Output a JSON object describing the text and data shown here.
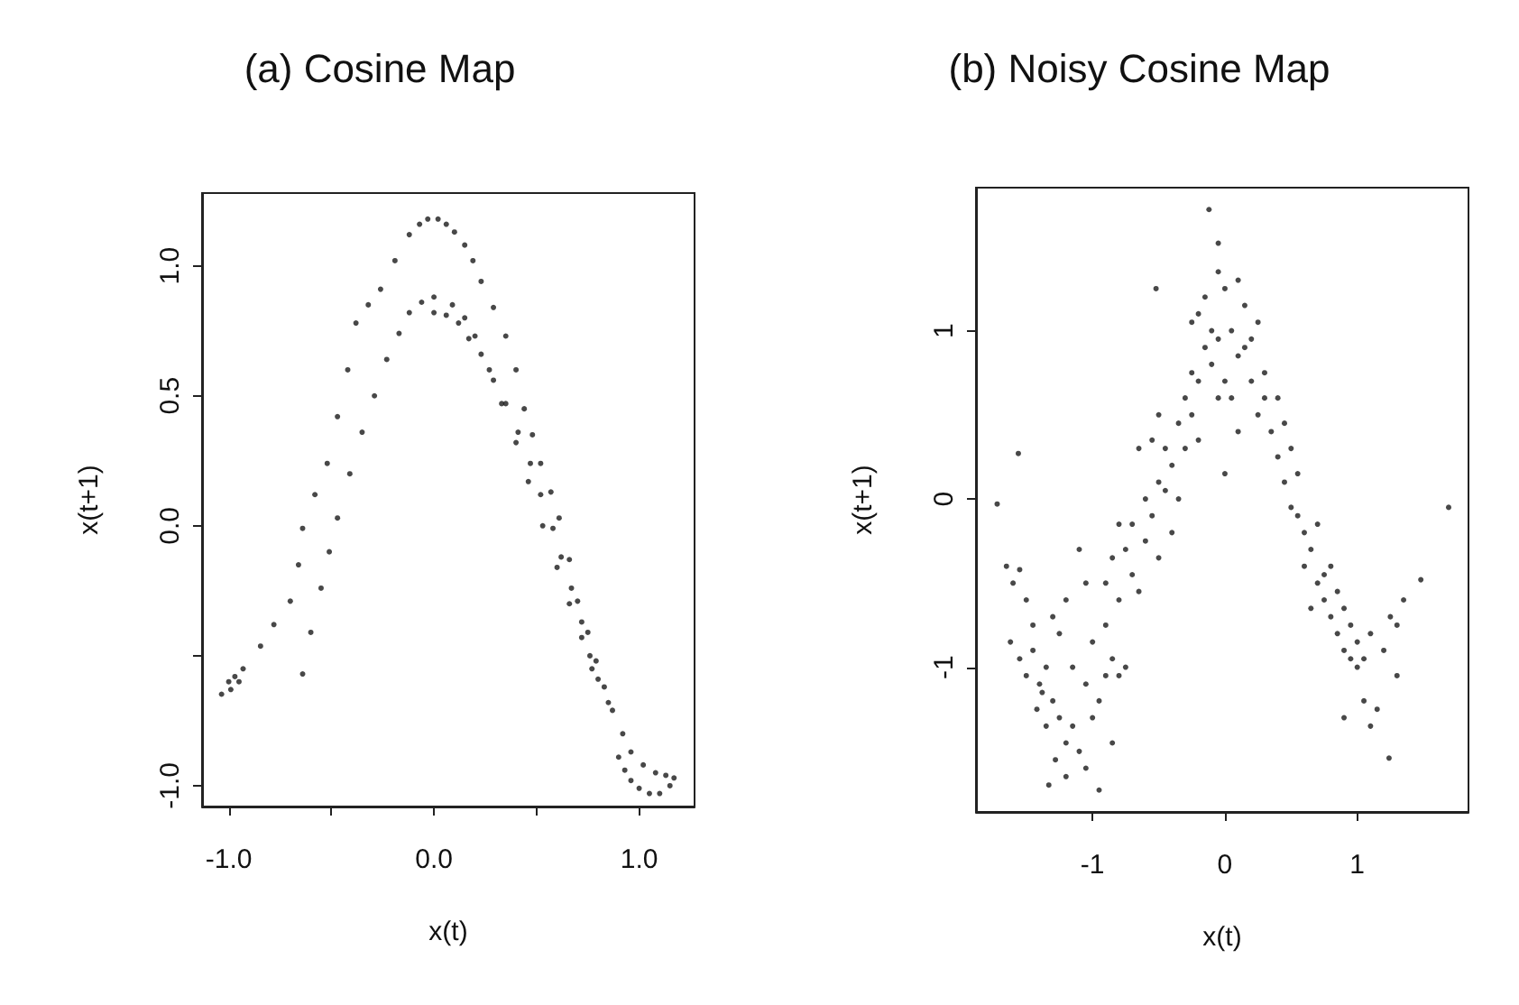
{
  "chart_data": [
    {
      "type": "scatter",
      "title": "(a) Cosine Map",
      "xlabel": "x(t)",
      "ylabel": "x(t+1)",
      "xlim": [
        -1.13,
        1.27
      ],
      "ylim": [
        -1.08,
        1.28
      ],
      "xticks": [
        {
          "value": -1,
          "label": "-1.0"
        },
        {
          "value": -0.5,
          "label": null
        },
        {
          "value": 0,
          "label": "0.0"
        },
        {
          "value": 0.5,
          "label": null
        },
        {
          "value": 1,
          "label": "1.0"
        }
      ],
      "yticks": [
        {
          "value": -1,
          "label": "-1.0"
        },
        {
          "value": -0.5,
          "label": null
        },
        {
          "value": 0,
          "label": "0.0"
        },
        {
          "value": 0.5,
          "label": "0.5"
        },
        {
          "value": 1,
          "label": "1.0"
        }
      ],
      "grid": false,
      "marker": "circle",
      "series": [
        {
          "color": "#1a1a1a",
          "x": [
            -1.035,
            -1.0,
            -0.97,
            -0.95,
            -0.99,
            -0.93,
            -0.845,
            -0.78,
            -0.7,
            -0.66,
            -0.64,
            -0.58,
            -0.52,
            -0.47,
            -0.42,
            -0.38,
            -0.32,
            -0.26,
            -0.19,
            -0.12,
            -0.07,
            -0.03,
            0.02,
            0.06,
            0.1,
            0.15,
            0.19,
            0.23,
            0.29,
            0.35,
            0.4,
            0.44,
            0.48,
            0.52,
            0.57,
            0.61,
            0.66,
            0.7,
            0.75,
            0.79,
            0.83,
            0.87,
            0.92,
            0.96,
            1.02,
            1.08,
            1.13,
            1.17,
            1.15,
            1.1,
            1.05,
            1.0,
            0.96,
            0.93,
            0.9,
            -0.64,
            -0.6,
            -0.55,
            -0.51,
            -0.47,
            -0.41,
            -0.35,
            -0.29,
            -0.23,
            -0.17,
            -0.12,
            -0.06,
            0.0,
            0.0,
            0.06,
            0.12,
            0.17,
            0.23,
            0.29,
            0.35,
            0.41,
            0.47,
            0.52,
            0.58,
            0.62,
            0.67,
            0.72,
            0.76,
            0.8,
            0.85,
            0.09,
            0.15,
            0.2,
            0.27,
            0.33,
            0.4,
            0.46,
            0.53,
            0.6,
            0.66,
            0.72,
            0.77
          ],
          "values": [
            -0.648,
            -0.6,
            -0.58,
            -0.6,
            -0.63,
            -0.55,
            -0.463,
            -0.38,
            -0.29,
            -0.15,
            -0.01,
            0.12,
            0.24,
            0.42,
            0.6,
            0.78,
            0.85,
            0.91,
            1.02,
            1.12,
            1.16,
            1.18,
            1.18,
            1.16,
            1.13,
            1.08,
            1.02,
            0.94,
            0.84,
            0.73,
            0.6,
            0.45,
            0.35,
            0.24,
            0.13,
            0.03,
            -0.13,
            -0.29,
            -0.41,
            -0.52,
            -0.62,
            -0.71,
            -0.8,
            -0.87,
            -0.92,
            -0.95,
            -0.96,
            -0.97,
            -1.0,
            -1.03,
            -1.03,
            -1.01,
            -0.98,
            -0.94,
            -0.89,
            -0.57,
            -0.41,
            -0.24,
            -0.1,
            0.03,
            0.2,
            0.36,
            0.5,
            0.64,
            0.74,
            0.82,
            0.86,
            0.88,
            0.82,
            0.81,
            0.78,
            0.72,
            0.66,
            0.56,
            0.47,
            0.36,
            0.24,
            0.12,
            -0.01,
            -0.12,
            -0.24,
            -0.37,
            -0.5,
            -0.59,
            -0.68,
            0.85,
            0.8,
            0.73,
            0.6,
            0.47,
            0.32,
            0.17,
            0.0,
            -0.16,
            -0.3,
            -0.43,
            -0.55
          ]
        }
      ]
    },
    {
      "type": "scatter",
      "title": "(b) Noisy Cosine Map",
      "xlabel": "x(t)",
      "ylabel": "x(t+1)",
      "xlim": [
        -1.88,
        1.84
      ],
      "ylim": [
        -1.86,
        1.85
      ],
      "xticks": [
        -1,
        0,
        1
      ],
      "yticks": [
        -1,
        0,
        1
      ],
      "grid": false,
      "marker": "circle",
      "series": [
        {
          "color": "#1a1a1a",
          "x": [
            -0.12,
            -0.05,
            -1.72,
            -1.56,
            1.69,
            1.24,
            1.48,
            -0.52,
            -1.33,
            -0.95,
            -1.65,
            -1.6,
            -1.55,
            -1.5,
            -1.62,
            -1.55,
            -1.45,
            -1.5,
            -1.4,
            -1.35,
            -1.42,
            -1.3,
            -1.35,
            -1.25,
            -1.2,
            -1.28,
            -1.15,
            -1.1,
            -1.05,
            -1.2,
            -1.0,
            -0.95,
            -1.05,
            -0.9,
            -1.15,
            -1.25,
            -1.3,
            -1.2,
            -1.05,
            -1.0,
            -0.9,
            -0.85,
            -0.8,
            -0.75,
            -1.1,
            -1.45,
            -0.85,
            -1.38,
            -0.9,
            -0.85,
            -0.8,
            -0.75,
            -0.7,
            -0.7,
            -0.65,
            -0.6,
            -0.6,
            -0.55,
            -0.5,
            -0.5,
            -0.45,
            -0.45,
            -0.4,
            -0.4,
            -0.35,
            -0.35,
            -0.3,
            -0.3,
            -0.25,
            -0.25,
            -0.2,
            -0.2,
            -0.15,
            -0.65,
            -0.55,
            -0.8,
            -0.5,
            -0.25,
            -0.2,
            -0.15,
            -0.1,
            -0.1,
            -0.05,
            0.0,
            0.0,
            0.05,
            0.05,
            0.1,
            0.1,
            0.15,
            0.15,
            0.2,
            0.2,
            0.25,
            0.25,
            0.3,
            0.3,
            -0.05,
            0.1,
            -0.05,
            0.0,
            0.35,
            0.4,
            0.45,
            0.45,
            0.5,
            0.5,
            0.55,
            0.55,
            0.6,
            0.6,
            0.65,
            0.7,
            0.7,
            0.75,
            0.75,
            0.8,
            0.8,
            0.85,
            0.85,
            0.9,
            0.9,
            0.95,
            0.95,
            1.0,
            1.0,
            1.05,
            1.05,
            1.1,
            1.15,
            1.1,
            1.2,
            1.25,
            1.3,
            1.3,
            1.35,
            0.4,
            0.65,
            0.9
          ],
          "values": [
            1.72,
            1.52,
            -0.03,
            0.27,
            -0.05,
            -1.54,
            -0.48,
            1.25,
            -1.7,
            -1.73,
            -0.4,
            -0.5,
            -0.42,
            -0.6,
            -0.85,
            -0.95,
            -0.9,
            -1.05,
            -1.1,
            -1.0,
            -1.25,
            -1.2,
            -1.35,
            -1.3,
            -1.45,
            -1.55,
            -1.35,
            -1.5,
            -1.6,
            -1.65,
            -1.3,
            -1.2,
            -1.1,
            -1.05,
            -1.0,
            -0.8,
            -0.7,
            -0.6,
            -0.5,
            -0.85,
            -0.75,
            -0.95,
            -1.05,
            -1.0,
            -0.3,
            -0.75,
            -1.45,
            -1.15,
            -0.5,
            -0.35,
            -0.6,
            -0.3,
            -0.45,
            -0.15,
            -0.55,
            -0.25,
            0.0,
            -0.1,
            0.1,
            -0.35,
            0.05,
            0.3,
            -0.2,
            0.2,
            0.45,
            0.0,
            0.3,
            0.6,
            0.5,
            0.75,
            0.35,
            0.7,
            0.9,
            0.3,
            0.35,
            -0.15,
            0.5,
            1.05,
            1.1,
            1.2,
            1.0,
            0.8,
            0.95,
            1.25,
            0.7,
            1.0,
            0.6,
            0.85,
            1.3,
            1.15,
            0.9,
            0.95,
            0.7,
            1.05,
            0.5,
            0.75,
            0.6,
            1.35,
            0.4,
            0.6,
            0.15,
            0.4,
            0.25,
            0.45,
            0.1,
            0.3,
            -0.05,
            -0.1,
            0.15,
            -0.2,
            -0.4,
            -0.3,
            -0.5,
            -0.15,
            -0.6,
            -0.45,
            -0.7,
            -0.4,
            -0.8,
            -0.55,
            -0.9,
            -0.65,
            -0.95,
            -0.75,
            -1.0,
            -0.85,
            -1.2,
            -0.95,
            -1.35,
            -1.25,
            -0.8,
            -0.9,
            -0.7,
            -0.75,
            -1.05,
            -0.6,
            0.6,
            -0.65,
            -1.3
          ]
        }
      ]
    }
  ]
}
